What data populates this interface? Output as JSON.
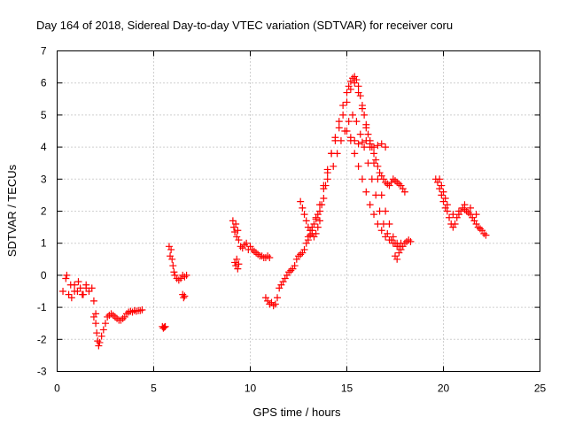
{
  "chart_data": {
    "type": "scatter",
    "title": "Day 164 of 2018, Sidereal Day-to-day VTEC variation (SDTVAR) for receiver coru",
    "xlabel": "GPS time / hours",
    "ylabel": "SDTVAR / TECUs",
    "xlim": [
      0,
      25
    ],
    "ylim": [
      -3,
      7
    ],
    "xticks": [
      0,
      5,
      10,
      15,
      20,
      25
    ],
    "yticks": [
      -3,
      -2,
      -1,
      0,
      1,
      2,
      3,
      4,
      5,
      6,
      7
    ],
    "xtick_labels": [
      "0",
      "5",
      "10",
      "15",
      "20",
      "25"
    ],
    "ytick_labels": [
      "-3",
      "-2",
      "-1",
      "0",
      "1",
      "2",
      "3",
      "4",
      "5",
      "6",
      "7"
    ],
    "grid": true,
    "marker": "+",
    "series": [
      {
        "name": "SDTVAR",
        "color": "#ff0000",
        "tracks": [
          {
            "x": [
              0.3,
              0.45,
              0.6,
              0.75,
              0.9,
              1.05,
              1.2,
              1.35,
              1.5,
              1.65,
              1.8,
              1.9,
              2.0
            ],
            "y": [
              -0.5,
              -0.1,
              -0.6,
              -0.7,
              -0.3,
              -0.5,
              -0.4,
              -0.6,
              -0.3,
              -0.5,
              -0.4,
              -0.8,
              -1.2
            ]
          },
          {
            "x": [
              0.5,
              0.7,
              0.9,
              1.1,
              1.3,
              1.5
            ],
            "y": [
              0.0,
              -0.3,
              -0.5,
              -0.2,
              -0.6,
              -0.4
            ]
          },
          {
            "x": [
              1.9,
              2.0,
              2.05,
              2.1,
              2.15,
              2.2,
              2.3,
              2.4,
              2.5,
              2.6,
              2.7,
              2.8,
              2.9,
              3.0,
              3.1,
              3.2,
              3.3,
              3.4,
              3.5,
              3.6,
              3.7,
              3.8,
              3.9,
              4.0,
              4.1,
              4.2,
              4.3,
              4.4
            ],
            "y": [
              -1.3,
              -1.5,
              -1.8,
              -2.05,
              -2.2,
              -2.1,
              -1.9,
              -1.7,
              -1.5,
              -1.3,
              -1.25,
              -1.2,
              -1.25,
              -1.3,
              -1.35,
              -1.4,
              -1.4,
              -1.35,
              -1.3,
              -1.2,
              -1.15,
              -1.12,
              -1.15,
              -1.1,
              -1.12,
              -1.1,
              -1.1,
              -1.08
            ]
          },
          {
            "x": [
              5.45,
              5.5,
              5.55,
              5.6
            ],
            "y": [
              -1.6,
              -1.65,
              -1.62,
              -1.6
            ]
          },
          {
            "x": [
              5.8,
              5.85,
              5.9,
              5.95,
              6.0,
              6.05,
              6.1,
              6.2,
              6.3,
              6.4,
              6.5,
              6.6,
              6.7
            ],
            "y": [
              0.9,
              0.6,
              0.8,
              0.5,
              0.3,
              0.1,
              0.0,
              -0.1,
              -0.15,
              -0.1,
              0.0,
              -0.05,
              0.0
            ]
          },
          {
            "x": [
              6.5,
              6.55,
              6.6
            ],
            "y": [
              -0.6,
              -0.7,
              -0.65
            ]
          },
          {
            "x": [
              9.1,
              9.15,
              9.2,
              9.25,
              9.3,
              9.35,
              9.4,
              9.5,
              9.6,
              9.7,
              9.8,
              9.9,
              10.0,
              10.1,
              10.2,
              10.3,
              10.4,
              10.5,
              10.6,
              10.7,
              10.8,
              10.9,
              11.0
            ],
            "y": [
              1.7,
              1.5,
              1.35,
              1.6,
              1.2,
              1.4,
              1.1,
              0.9,
              0.85,
              0.95,
              1.0,
              0.8,
              0.9,
              0.8,
              0.75,
              0.7,
              0.65,
              0.6,
              0.6,
              0.55,
              0.55,
              0.6,
              0.55
            ]
          },
          {
            "x": [
              9.2,
              9.25,
              9.3,
              9.35,
              9.4
            ],
            "y": [
              0.4,
              0.3,
              0.5,
              0.2,
              0.35
            ]
          },
          {
            "x": [
              10.8,
              10.9,
              11.0,
              11.1,
              11.2,
              11.3,
              11.4,
              11.5,
              11.6,
              11.7,
              11.8,
              11.9,
              12.0,
              12.1,
              12.2,
              12.3,
              12.4,
              12.5,
              12.6,
              12.7,
              12.8,
              12.9,
              13.0,
              13.1,
              13.2,
              13.3,
              13.4,
              13.5,
              13.6,
              13.7,
              13.8,
              13.9,
              14.0
            ],
            "y": [
              -0.7,
              -0.8,
              -0.9,
              -0.85,
              -0.95,
              -0.9,
              -0.7,
              -0.4,
              -0.3,
              -0.2,
              -0.1,
              0.0,
              0.1,
              0.15,
              0.2,
              0.3,
              0.5,
              0.6,
              0.65,
              0.7,
              0.8,
              1.0,
              1.1,
              1.25,
              1.4,
              1.6,
              1.75,
              1.9,
              2.0,
              2.2,
              2.4,
              2.8,
              3.0
            ]
          },
          {
            "x": [
              12.6,
              12.7,
              12.8,
              12.9,
              13.0,
              13.1,
              13.2,
              13.3,
              13.4,
              13.5,
              13.6
            ],
            "y": [
              2.3,
              2.1,
              1.9,
              1.7,
              1.5,
              1.4,
              1.3,
              1.2,
              1.3,
              1.5,
              1.7
            ]
          },
          {
            "x": [
              13.0,
              13.2,
              13.4,
              13.6,
              13.8,
              14.0,
              14.2,
              14.4,
              14.6,
              14.8,
              15.0,
              15.1,
              15.2,
              15.3,
              15.4,
              15.5,
              15.6,
              15.7,
              15.8,
              15.9,
              16.0,
              16.1,
              16.2,
              16.3,
              16.4,
              16.5,
              16.6,
              16.7,
              16.8,
              16.9,
              17.0,
              17.1,
              17.2,
              17.3,
              17.4,
              17.5,
              17.6,
              17.7,
              17.8,
              17.9,
              18.0
            ],
            "y": [
              1.2,
              1.5,
              1.8,
              2.2,
              2.7,
              3.2,
              3.8,
              4.3,
              4.8,
              5.3,
              5.7,
              5.9,
              6.05,
              6.15,
              6.2,
              6.1,
              5.9,
              5.6,
              5.3,
              5.0,
              4.7,
              4.4,
              4.2,
              4.0,
              3.8,
              3.6,
              3.4,
              3.2,
              3.1,
              3.0,
              2.9,
              2.85,
              2.8,
              2.9,
              3.0,
              2.95,
              2.9,
              2.85,
              2.8,
              2.7,
              2.6
            ]
          },
          {
            "x": [
              13.8,
              14.0,
              14.2,
              14.4,
              14.6,
              14.8,
              15.0,
              15.2,
              15.4,
              15.6,
              15.8,
              16.0,
              16.2,
              16.4,
              16.6,
              16.8,
              17.0,
              17.2,
              17.4,
              17.6
            ],
            "y": [
              2.8,
              3.3,
              3.8,
              4.2,
              4.6,
              5.0,
              5.4,
              5.8,
              6.0,
              5.7,
              5.2,
              4.6,
              4.0,
              3.5,
              3.0,
              2.5,
              2.0,
              1.6,
              1.2,
              0.9
            ]
          },
          {
            "x": [
              14.3,
              14.5,
              14.7,
              14.9,
              15.1,
              15.3,
              15.5,
              15.7,
              15.9,
              16.1,
              16.3,
              16.5,
              16.7,
              16.9,
              17.1,
              17.3,
              17.5,
              17.7
            ],
            "y": [
              3.4,
              3.8,
              4.2,
              4.5,
              4.8,
              5.0,
              4.8,
              4.4,
              4.0,
              3.5,
              3.0,
              2.5,
              2.0,
              1.6,
              1.3,
              1.1,
              1.0,
              0.9
            ]
          },
          {
            "x": [
              15.0,
              15.2,
              15.4,
              15.6,
              15.8,
              16.0,
              16.2,
              16.4,
              16.6,
              16.8,
              17.0,
              17.2,
              17.4,
              17.6,
              17.8
            ],
            "y": [
              4.5,
              4.2,
              3.8,
              3.4,
              3.0,
              2.6,
              2.2,
              1.9,
              1.6,
              1.4,
              1.2,
              1.1,
              1.0,
              1.0,
              1.0
            ]
          },
          {
            "x": [
              15.2,
              15.4,
              15.6,
              15.8,
              16.0,
              16.2,
              16.4,
              16.6,
              16.8,
              17.0
            ],
            "y": [
              4.3,
              4.2,
              4.1,
              4.15,
              4.2,
              4.1,
              4.0,
              4.05,
              4.1,
              4.0
            ]
          },
          {
            "x": [
              17.5,
              17.6,
              17.7,
              17.8,
              17.9,
              18.0,
              18.1,
              18.2,
              18.3
            ],
            "y": [
              0.6,
              0.5,
              0.7,
              0.8,
              0.9,
              1.0,
              1.05,
              1.1,
              1.05
            ]
          },
          {
            "x": [
              19.6,
              19.7,
              19.8,
              19.9,
              20.0,
              20.1,
              20.2,
              20.3,
              20.4,
              20.5,
              20.6,
              20.7,
              20.8,
              20.9,
              21.0,
              21.1,
              21.2,
              21.3,
              21.4,
              21.5,
              21.6,
              21.7,
              21.8,
              21.9,
              22.0,
              22.1,
              22.2
            ],
            "y": [
              3.0,
              2.9,
              2.7,
              2.5,
              2.3,
              2.1,
              2.0,
              1.8,
              1.6,
              1.5,
              1.6,
              1.8,
              1.9,
              2.0,
              2.1,
              2.05,
              2.0,
              1.95,
              1.9,
              1.8,
              1.7,
              1.6,
              1.5,
              1.45,
              1.4,
              1.3,
              1.25
            ]
          },
          {
            "x": [
              19.8,
              19.9,
              20.0,
              20.1,
              20.2,
              20.5,
              20.8,
              21.1,
              21.4,
              21.7
            ],
            "y": [
              3.0,
              2.8,
              2.6,
              2.4,
              2.2,
              1.9,
              2.0,
              2.2,
              2.1,
              1.9
            ]
          }
        ]
      }
    ]
  }
}
